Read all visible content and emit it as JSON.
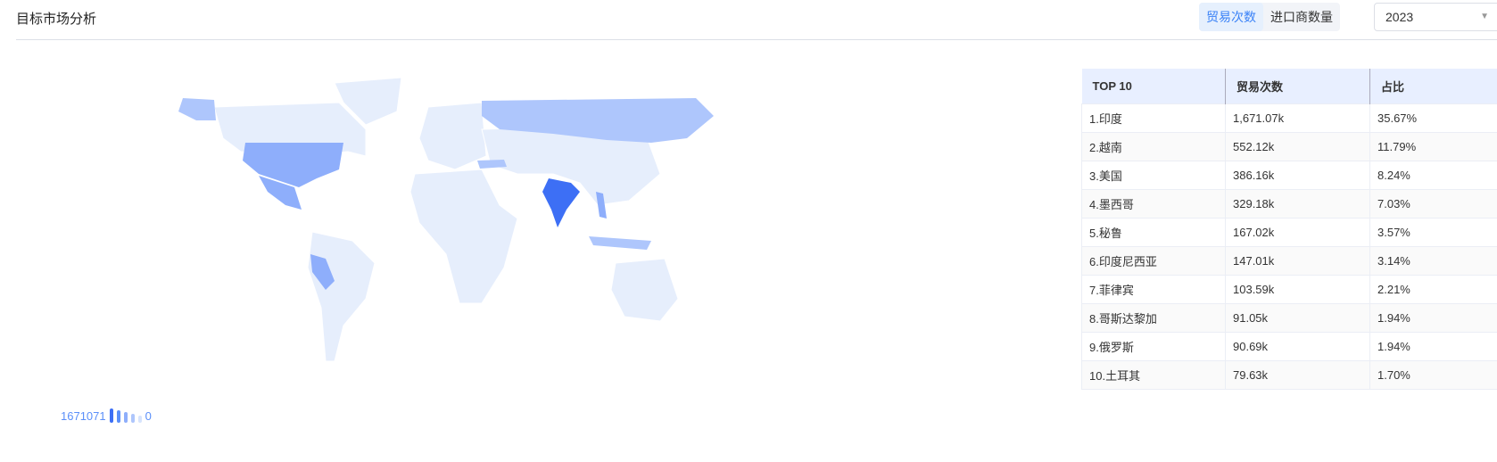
{
  "header": {
    "title": "目标市场分析",
    "toggle": [
      {
        "label": "贸易次数",
        "active": true
      },
      {
        "label": "进口商数量",
        "active": false
      }
    ],
    "year": "2023"
  },
  "colors": {
    "accent": "#3a82f7",
    "max": "#3d6ff5",
    "mid": "#8eaefb",
    "low": "#aec6fc",
    "base": "#e6eefc"
  },
  "legend": {
    "max": "1671071",
    "min": "0"
  },
  "table": {
    "headers": [
      "TOP 10",
      "贸易次数",
      "占比"
    ],
    "rows": [
      [
        "1.印度",
        "1,671.07k",
        "35.67%"
      ],
      [
        "2.越南",
        "552.12k",
        "11.79%"
      ],
      [
        "3.美国",
        "386.16k",
        "8.24%"
      ],
      [
        "4.墨西哥",
        "329.18k",
        "7.03%"
      ],
      [
        "5.秘鲁",
        "167.02k",
        "3.57%"
      ],
      [
        "6.印度尼西亚",
        "147.01k",
        "3.14%"
      ],
      [
        "7.菲律宾",
        "103.59k",
        "2.21%"
      ],
      [
        "8.哥斯达黎加",
        "91.05k",
        "1.94%"
      ],
      [
        "9.俄罗斯",
        "90.69k",
        "1.94%"
      ],
      [
        "10.土耳其",
        "79.63k",
        "1.70%"
      ]
    ]
  }
}
